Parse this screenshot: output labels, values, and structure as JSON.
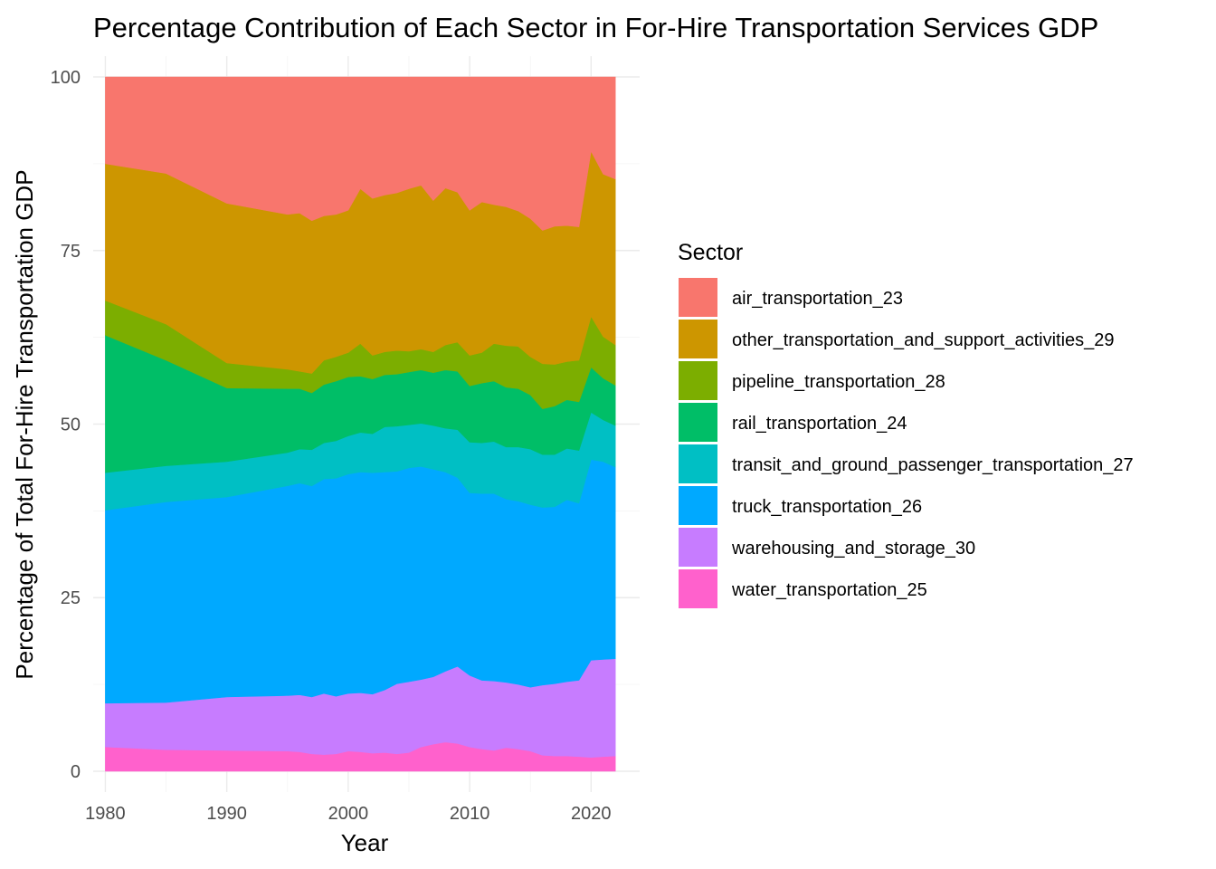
{
  "chart_data": {
    "type": "area",
    "stacked": true,
    "title": "Percentage Contribution of Each Sector in For-Hire Transportation Services GDP",
    "xlabel": "Year",
    "ylabel": "Percentage of Total For-Hire Transportation GDP",
    "xlim": [
      1979,
      2024
    ],
    "ylim": [
      -3,
      103
    ],
    "xticks": [
      1980,
      1990,
      2000,
      2010,
      2020
    ],
    "xtick_labels": [
      "1980",
      "1990",
      "2000",
      "2010",
      "2020"
    ],
    "yticks": [
      0,
      25,
      50,
      75,
      100
    ],
    "ytick_labels": [
      "0",
      "25",
      "50",
      "75",
      "100"
    ],
    "grid": true,
    "legend": {
      "title": "Sector",
      "position": "right"
    },
    "x": [
      1980,
      1985,
      1990,
      1995,
      1996,
      1997,
      1998,
      1999,
      2000,
      2001,
      2002,
      2003,
      2004,
      2005,
      2006,
      2007,
      2008,
      2009,
      2010,
      2011,
      2012,
      2013,
      2014,
      2015,
      2016,
      2017,
      2018,
      2019,
      2020,
      2021,
      2022
    ],
    "series": [
      {
        "name": "water_transportation_25",
        "color": "#FF61CC",
        "values": [
          3.5,
          3.1,
          3.0,
          2.9,
          2.8,
          2.5,
          2.4,
          2.5,
          2.9,
          2.8,
          2.6,
          2.7,
          2.5,
          2.7,
          3.5,
          3.9,
          4.2,
          4.0,
          3.5,
          3.2,
          3.0,
          3.4,
          3.2,
          2.9,
          2.3,
          2.2,
          2.2,
          2.1,
          2.0,
          2.1,
          2.2
        ]
      },
      {
        "name": "warehousing_and_storage_30",
        "color": "#C77CFF",
        "values": [
          6.3,
          6.8,
          7.7,
          8.0,
          8.2,
          8.2,
          8.8,
          8.3,
          8.3,
          8.5,
          8.5,
          9.0,
          10.1,
          10.2,
          9.7,
          9.7,
          10.2,
          11.1,
          10.3,
          9.9,
          10.0,
          9.4,
          9.3,
          9.2,
          10.1,
          10.4,
          10.7,
          11.0,
          14.0,
          14.0,
          14.0
        ]
      },
      {
        "name": "truck_transportation_26",
        "color": "#00A9FF",
        "values": [
          27.8,
          28.9,
          28.8,
          30.2,
          30.5,
          30.4,
          30.9,
          31.4,
          31.6,
          31.8,
          31.9,
          31.4,
          30.6,
          30.8,
          30.7,
          29.9,
          28.7,
          27.2,
          26.3,
          26.9,
          27.0,
          26.4,
          26.4,
          26.3,
          25.6,
          25.5,
          26.2,
          25.5,
          28.9,
          28.5,
          27.6
        ]
      },
      {
        "name": "transit_and_ground_passenger_transportation_27",
        "color": "#00BFC4",
        "values": [
          5.4,
          5.2,
          5.1,
          4.8,
          4.9,
          5.2,
          5.2,
          5.4,
          5.5,
          5.7,
          5.6,
          6.5,
          6.5,
          6.2,
          6.2,
          6.3,
          6.3,
          6.9,
          7.3,
          7.3,
          7.5,
          7.5,
          7.8,
          8.0,
          7.6,
          7.5,
          7.4,
          7.6,
          6.8,
          6.0,
          6.0
        ]
      },
      {
        "name": "rail_transportation_24",
        "color": "#00BE67",
        "values": [
          19.8,
          15.2,
          10.6,
          9.2,
          8.7,
          8.2,
          8.4,
          8.6,
          8.5,
          8.1,
          7.9,
          7.5,
          7.5,
          7.6,
          7.7,
          7.6,
          8.4,
          8.4,
          8.1,
          8.6,
          8.7,
          8.6,
          8.4,
          7.8,
          6.6,
          7.0,
          7.0,
          7.0,
          6.5,
          6.0,
          5.8
        ]
      },
      {
        "name": "pipeline_transportation_28",
        "color": "#7CAE00",
        "values": [
          5.0,
          5.2,
          3.6,
          2.8,
          2.5,
          2.8,
          3.5,
          3.5,
          3.5,
          4.7,
          3.4,
          3.3,
          3.4,
          3.0,
          3.0,
          3.0,
          3.6,
          4.2,
          4.4,
          4.4,
          5.4,
          6.0,
          6.1,
          5.5,
          6.5,
          6.0,
          5.5,
          6.0,
          7.3,
          6.0,
          5.8
        ]
      },
      {
        "name": "other_transportation_and_support_activities_29",
        "color": "#CD9600",
        "values": [
          19.7,
          21.7,
          23.0,
          22.3,
          22.8,
          22.0,
          20.8,
          20.5,
          20.5,
          22.3,
          22.6,
          22.6,
          22.7,
          23.4,
          23.6,
          21.8,
          22.6,
          21.6,
          20.9,
          21.7,
          20.0,
          20.0,
          19.5,
          19.9,
          19.2,
          19.9,
          19.6,
          19.2,
          23.8,
          23.4,
          23.9
        ]
      },
      {
        "name": "air_transportation_23",
        "color": "#F8766D",
        "values": [
          12.5,
          13.9,
          18.2,
          19.8,
          19.6,
          20.7,
          20.0,
          19.8,
          19.2,
          16.1,
          17.5,
          17.0,
          16.7,
          16.1,
          15.6,
          17.8,
          16.0,
          16.6,
          19.2,
          18.0,
          18.4,
          18.7,
          19.3,
          20.4,
          22.1,
          21.5,
          21.4,
          21.6,
          10.7,
          14.0,
          14.7
        ]
      }
    ]
  }
}
